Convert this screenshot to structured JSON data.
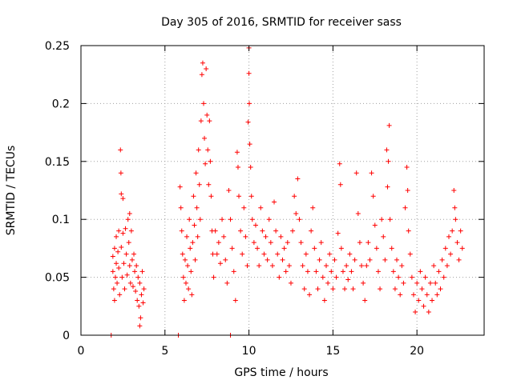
{
  "chart_data": {
    "type": "scatter",
    "title": "Day 305 of 2016, SRMTID for receiver sass",
    "xlabel": "GPS time / hours",
    "ylabel": "SRMTID / TECUs",
    "xlim": [
      0,
      24
    ],
    "ylim": [
      0,
      0.25
    ],
    "x_ticks": [
      0,
      5,
      10,
      15,
      20
    ],
    "y_ticks": [
      0,
      0.05,
      0.1,
      0.15,
      0.2,
      0.25
    ],
    "x_tick_labels": [
      "0",
      "5",
      "10",
      "15",
      "20"
    ],
    "y_tick_labels": [
      "0",
      "0.05",
      "0.1",
      "0.15",
      "0.2",
      "0.25"
    ],
    "grid": true,
    "color": "#ff0000",
    "marker": "plus",
    "series": [
      {
        "name": "SRMTID",
        "points": [
          [
            1.8,
            0.0
          ],
          [
            5.8,
            0.0
          ],
          [
            8.9,
            0.0
          ],
          [
            1.9,
            0.055
          ],
          [
            1.9,
            0.068
          ],
          [
            1.95,
            0.04
          ],
          [
            2.0,
            0.075
          ],
          [
            2.0,
            0.03
          ],
          [
            2.05,
            0.05
          ],
          [
            2.1,
            0.085
          ],
          [
            2.1,
            0.062
          ],
          [
            2.15,
            0.045
          ],
          [
            2.2,
            0.072
          ],
          [
            2.25,
            0.09
          ],
          [
            2.25,
            0.058
          ],
          [
            2.3,
            0.035
          ],
          [
            2.35,
            0.16
          ],
          [
            2.38,
            0.14
          ],
          [
            2.4,
            0.122
          ],
          [
            2.4,
            0.076
          ],
          [
            2.45,
            0.05
          ],
          [
            2.5,
            0.118
          ],
          [
            2.5,
            0.088
          ],
          [
            2.55,
            0.062
          ],
          [
            2.6,
            0.04
          ],
          [
            2.65,
            0.092
          ],
          [
            2.7,
            0.07
          ],
          [
            2.75,
            0.052
          ],
          [
            2.8,
            0.1
          ],
          [
            2.85,
            0.08
          ],
          [
            2.9,
            0.105
          ],
          [
            2.9,
            0.06
          ],
          [
            2.95,
            0.045
          ],
          [
            3.0,
            0.09
          ],
          [
            3.05,
            0.065
          ],
          [
            3.1,
            0.042
          ],
          [
            3.15,
            0.07
          ],
          [
            3.2,
            0.055
          ],
          [
            3.25,
            0.038
          ],
          [
            3.3,
            0.06
          ],
          [
            3.35,
            0.03
          ],
          [
            3.4,
            0.05
          ],
          [
            3.45,
            0.025
          ],
          [
            3.5,
            0.045
          ],
          [
            3.55,
            0.015
          ],
          [
            3.6,
            0.035
          ],
          [
            3.65,
            0.055
          ],
          [
            3.7,
            0.028
          ],
          [
            3.75,
            0.04
          ],
          [
            3.5,
            0.008
          ],
          [
            5.9,
            0.128
          ],
          [
            5.95,
            0.11
          ],
          [
            6.0,
            0.09
          ],
          [
            6.05,
            0.07
          ],
          [
            6.1,
            0.05
          ],
          [
            6.15,
            0.03
          ],
          [
            6.2,
            0.065
          ],
          [
            6.25,
            0.045
          ],
          [
            6.3,
            0.085
          ],
          [
            6.35,
            0.06
          ],
          [
            6.4,
            0.04
          ],
          [
            6.45,
            0.1
          ],
          [
            6.5,
            0.075
          ],
          [
            6.55,
            0.055
          ],
          [
            6.6,
            0.035
          ],
          [
            6.65,
            0.08
          ],
          [
            6.7,
            0.12
          ],
          [
            6.75,
            0.095
          ],
          [
            6.8,
            0.065
          ],
          [
            6.85,
            0.14
          ],
          [
            6.9,
            0.11
          ],
          [
            6.95,
            0.085
          ],
          [
            7.0,
            0.16
          ],
          [
            7.05,
            0.13
          ],
          [
            7.1,
            0.1
          ],
          [
            7.15,
            0.185
          ],
          [
            7.2,
            0.225
          ],
          [
            7.25,
            0.235
          ],
          [
            7.3,
            0.2
          ],
          [
            7.35,
            0.17
          ],
          [
            7.4,
            0.148
          ],
          [
            7.45,
            0.23
          ],
          [
            7.5,
            0.19
          ],
          [
            7.55,
            0.16
          ],
          [
            7.6,
            0.13
          ],
          [
            7.65,
            0.185
          ],
          [
            7.7,
            0.15
          ],
          [
            7.75,
            0.12
          ],
          [
            7.8,
            0.09
          ],
          [
            7.85,
            0.07
          ],
          [
            7.9,
            0.05
          ],
          [
            8.0,
            0.09
          ],
          [
            8.1,
            0.07
          ],
          [
            8.2,
            0.08
          ],
          [
            8.3,
            0.062
          ],
          [
            8.4,
            0.1
          ],
          [
            8.5,
            0.085
          ],
          [
            8.6,
            0.065
          ],
          [
            8.7,
            0.045
          ],
          [
            8.8,
            0.125
          ],
          [
            8.9,
            0.1
          ],
          [
            9.0,
            0.075
          ],
          [
            9.1,
            0.055
          ],
          [
            9.2,
            0.03
          ],
          [
            9.3,
            0.158
          ],
          [
            9.35,
            0.145
          ],
          [
            9.4,
            0.12
          ],
          [
            9.5,
            0.09
          ],
          [
            9.6,
            0.07
          ],
          [
            9.7,
            0.11
          ],
          [
            9.8,
            0.085
          ],
          [
            9.9,
            0.06
          ],
          [
            9.95,
            0.184
          ],
          [
            10.0,
            0.248
          ],
          [
            10.0,
            0.226
          ],
          [
            10.02,
            0.2
          ],
          [
            10.05,
            0.165
          ],
          [
            10.1,
            0.145
          ],
          [
            10.15,
            0.12
          ],
          [
            10.2,
            0.1
          ],
          [
            10.3,
            0.08
          ],
          [
            10.4,
            0.095
          ],
          [
            10.5,
            0.075
          ],
          [
            10.6,
            0.06
          ],
          [
            10.7,
            0.11
          ],
          [
            10.8,
            0.09
          ],
          [
            10.9,
            0.07
          ],
          [
            11.0,
            0.085
          ],
          [
            11.1,
            0.065
          ],
          [
            11.2,
            0.1
          ],
          [
            11.3,
            0.08
          ],
          [
            11.4,
            0.06
          ],
          [
            11.5,
            0.115
          ],
          [
            11.6,
            0.09
          ],
          [
            11.7,
            0.07
          ],
          [
            11.8,
            0.05
          ],
          [
            11.9,
            0.085
          ],
          [
            12.0,
            0.065
          ],
          [
            12.1,
            0.075
          ],
          [
            12.2,
            0.055
          ],
          [
            12.3,
            0.08
          ],
          [
            12.4,
            0.06
          ],
          [
            12.5,
            0.045
          ],
          [
            12.6,
            0.09
          ],
          [
            12.7,
            0.12
          ],
          [
            12.8,
            0.105
          ],
          [
            12.9,
            0.135
          ],
          [
            13.0,
            0.1
          ],
          [
            13.1,
            0.08
          ],
          [
            13.2,
            0.06
          ],
          [
            13.3,
            0.04
          ],
          [
            13.4,
            0.07
          ],
          [
            13.5,
            0.055
          ],
          [
            13.6,
            0.035
          ],
          [
            13.7,
            0.09
          ],
          [
            13.8,
            0.11
          ],
          [
            13.9,
            0.075
          ],
          [
            14.0,
            0.055
          ],
          [
            14.1,
            0.04
          ],
          [
            14.2,
            0.065
          ],
          [
            14.3,
            0.08
          ],
          [
            14.4,
            0.05
          ],
          [
            14.5,
            0.03
          ],
          [
            14.6,
            0.06
          ],
          [
            14.7,
            0.045
          ],
          [
            14.8,
            0.07
          ],
          [
            14.9,
            0.055
          ],
          [
            15.0,
            0.04
          ],
          [
            15.1,
            0.065
          ],
          [
            15.2,
            0.05
          ],
          [
            15.3,
            0.088
          ],
          [
            15.4,
            0.148
          ],
          [
            15.45,
            0.13
          ],
          [
            15.5,
            0.075
          ],
          [
            15.6,
            0.055
          ],
          [
            15.7,
            0.04
          ],
          [
            15.8,
            0.06
          ],
          [
            15.9,
            0.048
          ],
          [
            16.0,
            0.07
          ],
          [
            16.1,
            0.055
          ],
          [
            16.2,
            0.04
          ],
          [
            16.3,
            0.065
          ],
          [
            16.4,
            0.14
          ],
          [
            16.5,
            0.105
          ],
          [
            16.6,
            0.08
          ],
          [
            16.7,
            0.06
          ],
          [
            16.8,
            0.045
          ],
          [
            16.9,
            0.03
          ],
          [
            17.0,
            0.06
          ],
          [
            17.1,
            0.08
          ],
          [
            17.2,
            0.065
          ],
          [
            17.3,
            0.14
          ],
          [
            17.4,
            0.12
          ],
          [
            17.5,
            0.095
          ],
          [
            17.6,
            0.075
          ],
          [
            17.7,
            0.055
          ],
          [
            17.8,
            0.04
          ],
          [
            17.9,
            0.1
          ],
          [
            18.0,
            0.085
          ],
          [
            18.1,
            0.065
          ],
          [
            18.2,
            0.16
          ],
          [
            18.25,
            0.128
          ],
          [
            18.3,
            0.15
          ],
          [
            18.35,
            0.181
          ],
          [
            18.4,
            0.1
          ],
          [
            18.5,
            0.075
          ],
          [
            18.6,
            0.055
          ],
          [
            18.7,
            0.04
          ],
          [
            18.8,
            0.065
          ],
          [
            18.9,
            0.05
          ],
          [
            19.0,
            0.035
          ],
          [
            19.1,
            0.06
          ],
          [
            19.2,
            0.045
          ],
          [
            19.3,
            0.11
          ],
          [
            19.4,
            0.145
          ],
          [
            19.45,
            0.125
          ],
          [
            19.5,
            0.09
          ],
          [
            19.6,
            0.07
          ],
          [
            19.7,
            0.05
          ],
          [
            19.8,
            0.035
          ],
          [
            19.9,
            0.02
          ],
          [
            20.0,
            0.045
          ],
          [
            20.1,
            0.03
          ],
          [
            20.2,
            0.055
          ],
          [
            20.3,
            0.04
          ],
          [
            20.4,
            0.025
          ],
          [
            20.5,
            0.05
          ],
          [
            20.6,
            0.035
          ],
          [
            20.7,
            0.02
          ],
          [
            20.8,
            0.045
          ],
          [
            20.9,
            0.03
          ],
          [
            21.0,
            0.06
          ],
          [
            21.1,
            0.045
          ],
          [
            21.2,
            0.035
          ],
          [
            21.3,
            0.055
          ],
          [
            21.4,
            0.04
          ],
          [
            21.5,
            0.065
          ],
          [
            21.6,
            0.05
          ],
          [
            21.7,
            0.075
          ],
          [
            21.8,
            0.06
          ],
          [
            21.9,
            0.085
          ],
          [
            22.0,
            0.07
          ],
          [
            22.1,
            0.09
          ],
          [
            22.2,
            0.125
          ],
          [
            22.25,
            0.11
          ],
          [
            22.3,
            0.1
          ],
          [
            22.4,
            0.08
          ],
          [
            22.5,
            0.065
          ],
          [
            22.6,
            0.09
          ],
          [
            22.7,
            0.075
          ]
        ]
      }
    ]
  }
}
